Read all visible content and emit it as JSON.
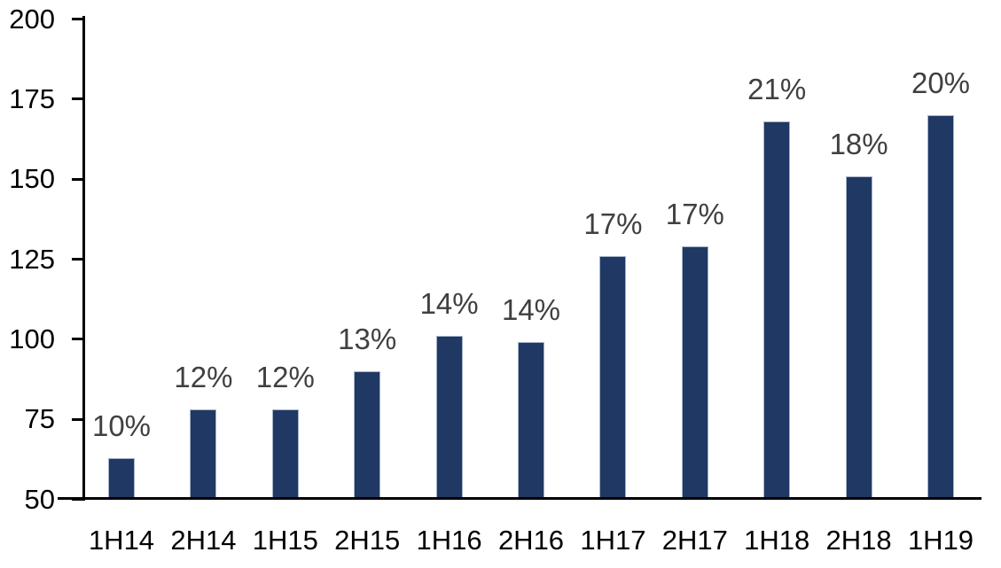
{
  "chart_data": {
    "type": "bar",
    "title": "",
    "xlabel": "",
    "ylabel": "",
    "categories": [
      "1H14",
      "2H14",
      "1H15",
      "2H15",
      "1H16",
      "2H16",
      "1H17",
      "2H17",
      "1H18",
      "2H18",
      "1H19"
    ],
    "values": [
      63,
      78,
      78,
      90,
      101,
      99,
      126,
      129,
      168,
      151,
      170
    ],
    "data_labels": [
      "10%",
      "12%",
      "12%",
      "13%",
      "14%",
      "14%",
      "17%",
      "17%",
      "21%",
      "18%",
      "20%"
    ],
    "ylim": [
      50,
      200
    ],
    "yticks": [
      50,
      75,
      100,
      125,
      150,
      175,
      200
    ],
    "grid": false,
    "legend_position": "none",
    "colors": {
      "bar_fill": "#1f3864",
      "bar_border": "#a6b4c8",
      "data_label_text": "#404040",
      "axis_text": "#000000",
      "axis_line": "#000000",
      "background": "#ffffff"
    }
  }
}
